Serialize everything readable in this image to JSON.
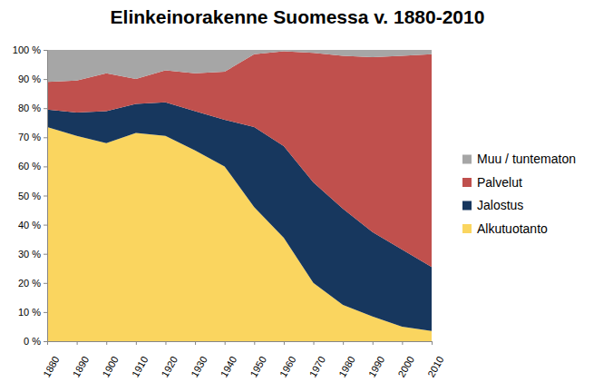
{
  "chart_data": {
    "type": "area",
    "title": "Elinkeinorakenne Suomessa v. 1880-2010",
    "x": [
      1880,
      1890,
      1900,
      1910,
      1920,
      1930,
      1940,
      1950,
      1960,
      1970,
      1980,
      1990,
      2000,
      2010
    ],
    "series": [
      {
        "name": "Alkutuotanto",
        "color": "#fad55f",
        "values": [
          73.5,
          70.5,
          68,
          71.5,
          70.5,
          65.5,
          60,
          46,
          35.5,
          20,
          12.5,
          8.5,
          5,
          3.5
        ]
      },
      {
        "name": "Jalostus",
        "color": "#17375e",
        "values": [
          6,
          8,
          11,
          10,
          11.5,
          13.5,
          16,
          27.5,
          31.5,
          34.5,
          33,
          29,
          26.5,
          22
        ]
      },
      {
        "name": "Palvelut",
        "color": "#c0504d",
        "values": [
          9.5,
          11,
          13,
          8.5,
          11,
          13,
          16.5,
          25,
          32.5,
          44.5,
          52.5,
          60,
          66.5,
          73
        ]
      },
      {
        "name": "Muu / tuntematon",
        "color": "#a6a6a6",
        "values": [
          11,
          10.5,
          8,
          10,
          7,
          8,
          7.5,
          1.5,
          0.5,
          1,
          2,
          2.5,
          2,
          1.5
        ]
      }
    ],
    "xlim": [
      1880,
      2010
    ],
    "xticks": [
      1880,
      1890,
      1900,
      1910,
      1920,
      1930,
      1940,
      1950,
      1960,
      1970,
      1980,
      1990,
      2000,
      2010
    ],
    "ylim": [
      0,
      100
    ],
    "yticks": [
      {
        "value": 0,
        "label": "0 %"
      },
      {
        "value": 10,
        "label": "10 %"
      },
      {
        "value": 20,
        "label": "20 %"
      },
      {
        "value": 30,
        "label": "30 %"
      },
      {
        "value": 40,
        "label": "40 %"
      },
      {
        "value": 50,
        "label": "50 %"
      },
      {
        "value": 60,
        "label": "60 %"
      },
      {
        "value": 70,
        "label": "70 %"
      },
      {
        "value": 80,
        "label": "80 %"
      },
      {
        "value": 90,
        "label": "90 %"
      },
      {
        "value": 100,
        "label": "100 %"
      }
    ],
    "stacked": true,
    "grid": false,
    "legend": "right"
  }
}
